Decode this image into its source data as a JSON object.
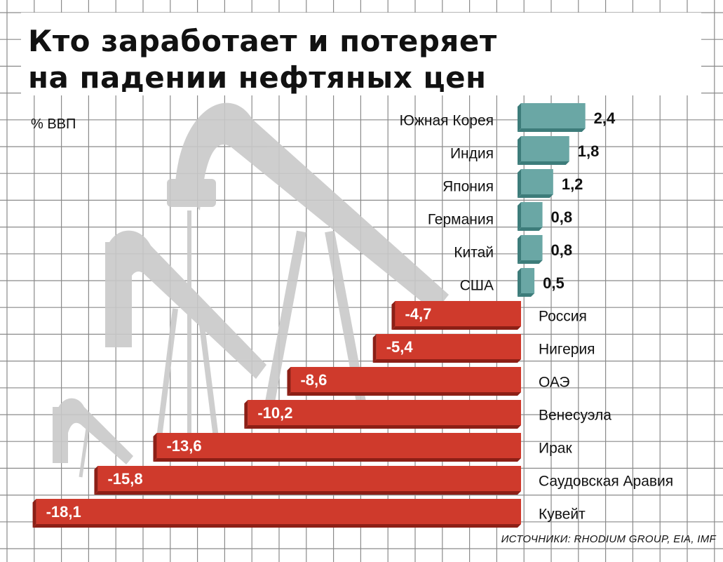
{
  "title": {
    "line1": "Кто заработает и потеряет",
    "line2": "на падении нефтяных цен"
  },
  "unit": "% ВВП",
  "source": "ИСТОЧНИКИ: RHODIUM GROUP, EIA, IMF",
  "colors": {
    "positive": "#6aa7a5",
    "positive_side": "#3d7c7a",
    "negative": "#cf3a2c",
    "negative_side": "#8c1f16",
    "grid": "#8a8a8a",
    "silhouette": "#c9c9c9",
    "text": "#111111"
  },
  "chart_data": {
    "type": "bar",
    "orientation": "horizontal",
    "categories": [
      "Южная Корея",
      "Индия",
      "Япония",
      "Германия",
      "Китай",
      "США",
      "Россия",
      "Нигерия",
      "ОАЭ",
      "Венесуэла",
      "Ирак",
      "Саудовская Аравия",
      "Кувейт"
    ],
    "value_labels": [
      "2,4",
      "1,8",
      "1,2",
      "0,8",
      "0,8",
      "0,5",
      "-4,7",
      "-5,4",
      "-8,6",
      "-10,2",
      "-13,6",
      "-15,8",
      "-18,1"
    ],
    "values": [
      2.4,
      1.8,
      1.2,
      0.8,
      0.8,
      0.5,
      -4.7,
      -5.4,
      -8.6,
      -10.2,
      -13.6,
      -15.8,
      -18.1
    ],
    "xlim": [
      -18.1,
      2.4
    ],
    "grid": true
  }
}
